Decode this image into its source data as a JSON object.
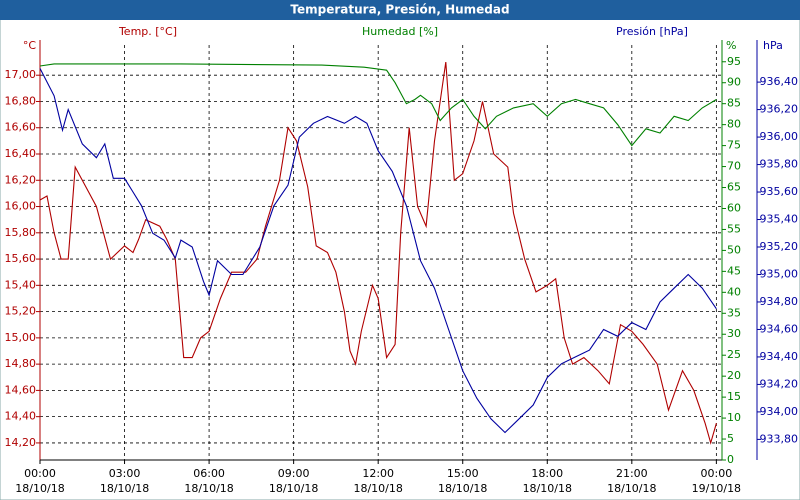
{
  "chart_data": {
    "type": "line",
    "title": "Temperatura, Presión, Humedad",
    "y_label": "°C",
    "y2_label": "%",
    "y3_label": "hPa",
    "xlim": [
      0,
      24.2
    ],
    "xticks": [
      {
        "value": 0,
        "label": "00:00 18/10/18"
      },
      {
        "value": 3,
        "label": "03:00 18/10/18"
      },
      {
        "value": 6,
        "label": "06:00 18/10/18"
      },
      {
        "value": 9,
        "label": "09:00 18/10/18"
      },
      {
        "value": 12,
        "label": "12:00 18/10/18"
      },
      {
        "value": 15,
        "label": "15:00 18/10/18"
      },
      {
        "value": 18,
        "label": "18:00 18/10/18"
      },
      {
        "value": 21,
        "label": "21:00 18/10/18"
      },
      {
        "value": 24,
        "label": "00:00 19/10/18"
      }
    ],
    "ylim": [
      14.07,
      17.23
    ],
    "yticks": [
      {
        "value": 14.2,
        "label": "14,20"
      },
      {
        "value": 14.4,
        "label": "14,40"
      },
      {
        "value": 14.6,
        "label": "14,60"
      },
      {
        "value": 14.8,
        "label": "14,80"
      },
      {
        "value": 15.0,
        "label": "15,00"
      },
      {
        "value": 15.2,
        "label": "15,20"
      },
      {
        "value": 15.4,
        "label": "15,40"
      },
      {
        "value": 15.6,
        "label": "15,60"
      },
      {
        "value": 15.8,
        "label": "15,80"
      },
      {
        "value": 16.0,
        "label": "16,00"
      },
      {
        "value": 16.2,
        "label": "16,20"
      },
      {
        "value": 16.4,
        "label": "16,40"
      },
      {
        "value": 16.6,
        "label": "16,60"
      },
      {
        "value": 16.8,
        "label": "16,80"
      },
      {
        "value": 17.0,
        "label": "17,00"
      }
    ],
    "y2lim": [
      0,
      99
    ],
    "y2ticks": [
      0,
      5,
      10,
      15,
      20,
      25,
      30,
      35,
      40,
      45,
      50,
      55,
      60,
      65,
      70,
      75,
      80,
      85,
      90,
      95
    ],
    "y3lim": [
      933.65,
      936.67
    ],
    "y3ticks": [
      {
        "value": 933.8,
        "label": "933,80"
      },
      {
        "value": 934.0,
        "label": "934,00"
      },
      {
        "value": 934.2,
        "label": "934,20"
      },
      {
        "value": 934.4,
        "label": "934,40"
      },
      {
        "value": 934.6,
        "label": "934,60"
      },
      {
        "value": 934.8,
        "label": "934,80"
      },
      {
        "value": 935.0,
        "label": "935,00"
      },
      {
        "value": 935.2,
        "label": "935,20"
      },
      {
        "value": 935.4,
        "label": "935,40"
      },
      {
        "value": 935.6,
        "label": "935,60"
      },
      {
        "value": 935.8,
        "label": "935,80"
      },
      {
        "value": 936.0,
        "label": "936,00"
      },
      {
        "value": 936.2,
        "label": "936,20"
      },
      {
        "value": 936.4,
        "label": "936,40"
      }
    ],
    "grid": true,
    "series": [
      {
        "name": "Temp. [°C]",
        "color": "#b00000",
        "axis": "y",
        "x": [
          0,
          0.25,
          0.5,
          0.75,
          1.0,
          1.25,
          1.5,
          2.0,
          2.5,
          3.0,
          3.3,
          3.5,
          3.75,
          4.25,
          4.5,
          4.8,
          5.1,
          5.4,
          5.7,
          6.0,
          6.4,
          6.8,
          7.3,
          7.7,
          8.0,
          8.5,
          8.8,
          9.1,
          9.5,
          9.8,
          10.2,
          10.5,
          10.8,
          11.0,
          11.2,
          11.4,
          11.8,
          12.0,
          12.3,
          12.6,
          12.8,
          13.1,
          13.4,
          13.7,
          14.0,
          14.4,
          14.7,
          15.0,
          15.4,
          15.7,
          16.1,
          16.6,
          16.8,
          17.2,
          17.6,
          18.0,
          18.3,
          18.6,
          18.9,
          19.3,
          19.8,
          20.2,
          20.6,
          21.0,
          21.4,
          21.9,
          22.3,
          22.8,
          23.2,
          23.6,
          23.8,
          24.0
        ],
        "values": [
          16.05,
          16.08,
          15.8,
          15.6,
          15.6,
          16.3,
          16.2,
          16.0,
          15.6,
          15.7,
          15.65,
          15.75,
          15.9,
          15.85,
          15.75,
          15.6,
          14.85,
          14.85,
          15.0,
          15.05,
          15.3,
          15.5,
          15.5,
          15.6,
          15.85,
          16.2,
          16.6,
          16.5,
          16.15,
          15.7,
          15.65,
          15.5,
          15.2,
          14.9,
          14.8,
          15.05,
          15.4,
          15.3,
          14.85,
          14.95,
          15.8,
          16.6,
          16.0,
          15.85,
          16.5,
          17.1,
          16.2,
          16.25,
          16.5,
          16.8,
          16.4,
          16.3,
          15.95,
          15.6,
          15.35,
          15.4,
          15.45,
          15.0,
          14.8,
          14.85,
          14.75,
          14.65,
          15.1,
          15.05,
          14.95,
          14.8,
          14.45,
          14.75,
          14.6,
          14.35,
          14.2,
          14.35
        ]
      },
      {
        "name": "Humedad [%]",
        "color": "#008000",
        "axis": "y2",
        "x": [
          0,
          0.5,
          5,
          10,
          11.5,
          12.3,
          12.6,
          13.0,
          13.3,
          13.5,
          13.9,
          14.2,
          14.6,
          15.0,
          15.4,
          15.8,
          16.2,
          16.8,
          17.5,
          18.0,
          18.5,
          19.0,
          19.5,
          20.0,
          20.5,
          21.0,
          21.5,
          22.0,
          22.5,
          23.0,
          23.5,
          24.0
        ],
        "values": [
          94,
          94.5,
          94.5,
          94.2,
          93.7,
          93,
          90,
          85,
          86,
          87,
          85,
          81,
          84,
          86,
          82,
          79,
          82,
          84,
          85,
          82,
          85,
          86,
          85,
          84,
          80,
          75,
          79,
          78,
          82,
          81,
          84,
          86
        ]
      },
      {
        "name": "Presión [hPa]",
        "color": "#0000a0",
        "axis": "y3",
        "x": [
          0,
          0.5,
          0.8,
          1.0,
          1.5,
          2.0,
          2.3,
          2.6,
          3.0,
          3.3,
          3.6,
          4.0,
          4.4,
          4.8,
          5.0,
          5.4,
          5.8,
          6.0,
          6.3,
          6.8,
          7.2,
          7.8,
          8.3,
          8.8,
          9.2,
          9.7,
          10.2,
          10.8,
          11.2,
          11.6,
          12.0,
          12.5,
          13.0,
          13.5,
          14.0,
          14.5,
          15.0,
          15.5,
          16.0,
          16.5,
          17.0,
          17.5,
          18.0,
          18.5,
          19.0,
          19.5,
          20.0,
          20.5,
          21.0,
          21.5,
          22.0,
          22.5,
          23.0,
          23.5,
          24.0
        ],
        "values": [
          936.5,
          936.3,
          936.05,
          936.2,
          935.95,
          935.85,
          935.95,
          935.7,
          935.7,
          935.6,
          935.5,
          935.3,
          935.25,
          935.12,
          935.25,
          935.2,
          934.95,
          934.85,
          935.1,
          935.0,
          935.0,
          935.2,
          935.5,
          935.65,
          936.0,
          936.1,
          936.15,
          936.1,
          936.15,
          936.1,
          935.9,
          935.75,
          935.5,
          935.1,
          934.9,
          934.6,
          934.3,
          934.1,
          933.95,
          933.85,
          933.95,
          934.05,
          934.25,
          934.35,
          934.4,
          934.45,
          934.6,
          934.55,
          934.65,
          934.6,
          934.8,
          934.9,
          935.0,
          934.9,
          934.75
        ]
      }
    ]
  }
}
